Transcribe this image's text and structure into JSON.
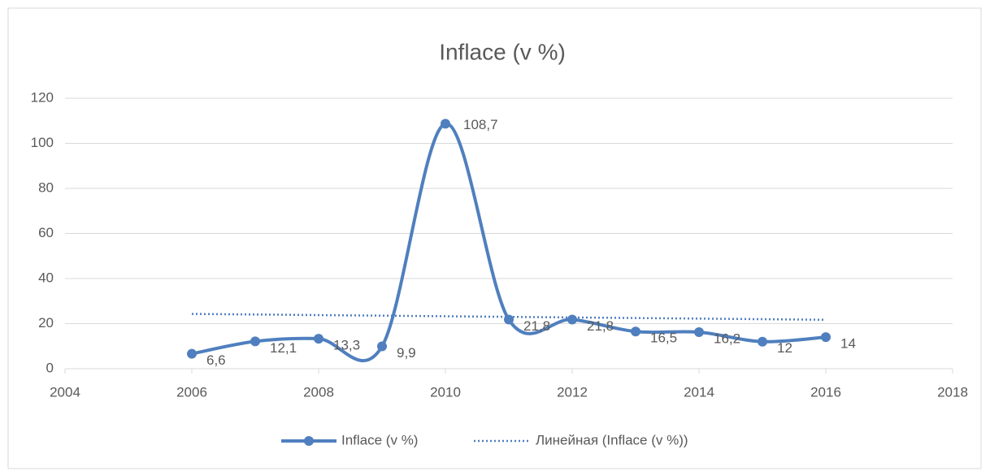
{
  "chart_data": {
    "type": "line",
    "title": "Inflace (v %)",
    "x": [
      2006,
      2007,
      2008,
      2009,
      2010,
      2011,
      2012,
      2013,
      2014,
      2015,
      2016
    ],
    "series": [
      {
        "name": "Inflace (v %)",
        "color": "#4f7fbe",
        "values": [
          6.6,
          12.1,
          13.3,
          9.9,
          108.7,
          21.8,
          21.8,
          16.5,
          16.2,
          12,
          14
        ],
        "value_labels": [
          "6,6",
          "12,1",
          "13,3",
          "9,9",
          "108,7",
          "21,8",
          "21,8",
          "16,5",
          "16,2",
          "12",
          "14"
        ]
      },
      {
        "name": "Линейная  (Inflace (v %))",
        "color": "#4f7fbe",
        "x": [
          2006,
          2016
        ],
        "values": [
          24.3,
          21.7
        ]
      }
    ],
    "xlim": [
      2004,
      2018
    ],
    "xticks": [
      2004,
      2006,
      2008,
      2010,
      2012,
      2014,
      2016,
      2018
    ],
    "ylim": [
      0,
      120
    ],
    "yticks": [
      0,
      20,
      40,
      60,
      80,
      100,
      120
    ],
    "grid": true
  }
}
